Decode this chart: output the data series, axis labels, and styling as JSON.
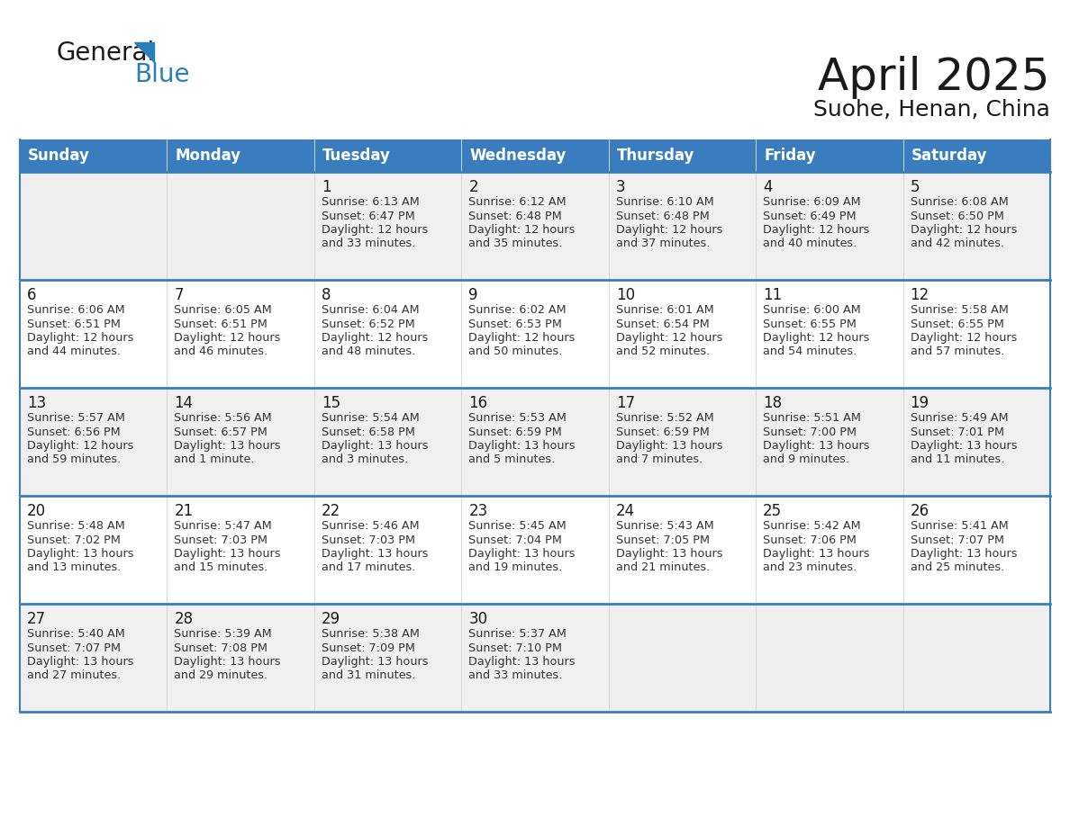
{
  "title": "April 2025",
  "subtitle": "Suohe, Henan, China",
  "header_color": "#3a7dbf",
  "header_text_color": "#FFFFFF",
  "border_color": "#3a7dbf",
  "row_border_color": "#3a7dbf",
  "cell_bg_even": "#F0F0F0",
  "cell_bg_odd": "#FFFFFF",
  "cell_bg_empty": "#EFEFEF",
  "days_of_week": [
    "Sunday",
    "Monday",
    "Tuesday",
    "Wednesday",
    "Thursday",
    "Friday",
    "Saturday"
  ],
  "logo_color1": "#1a1a1a",
  "logo_color2": "#2980b9",
  "logo_tri_color": "#2980b9",
  "title_color": "#1a1a1a",
  "subtitle_color": "#1a1a1a",
  "cell_text_color": "#333333",
  "day_num_color": "#1a1a1a",
  "calendar_data": [
    [
      {
        "day": "",
        "text": ""
      },
      {
        "day": "",
        "text": ""
      },
      {
        "day": "1",
        "text": "Sunrise: 6:13 AM\nSunset: 6:47 PM\nDaylight: 12 hours\nand 33 minutes."
      },
      {
        "day": "2",
        "text": "Sunrise: 6:12 AM\nSunset: 6:48 PM\nDaylight: 12 hours\nand 35 minutes."
      },
      {
        "day": "3",
        "text": "Sunrise: 6:10 AM\nSunset: 6:48 PM\nDaylight: 12 hours\nand 37 minutes."
      },
      {
        "day": "4",
        "text": "Sunrise: 6:09 AM\nSunset: 6:49 PM\nDaylight: 12 hours\nand 40 minutes."
      },
      {
        "day": "5",
        "text": "Sunrise: 6:08 AM\nSunset: 6:50 PM\nDaylight: 12 hours\nand 42 minutes."
      }
    ],
    [
      {
        "day": "6",
        "text": "Sunrise: 6:06 AM\nSunset: 6:51 PM\nDaylight: 12 hours\nand 44 minutes."
      },
      {
        "day": "7",
        "text": "Sunrise: 6:05 AM\nSunset: 6:51 PM\nDaylight: 12 hours\nand 46 minutes."
      },
      {
        "day": "8",
        "text": "Sunrise: 6:04 AM\nSunset: 6:52 PM\nDaylight: 12 hours\nand 48 minutes."
      },
      {
        "day": "9",
        "text": "Sunrise: 6:02 AM\nSunset: 6:53 PM\nDaylight: 12 hours\nand 50 minutes."
      },
      {
        "day": "10",
        "text": "Sunrise: 6:01 AM\nSunset: 6:54 PM\nDaylight: 12 hours\nand 52 minutes."
      },
      {
        "day": "11",
        "text": "Sunrise: 6:00 AM\nSunset: 6:55 PM\nDaylight: 12 hours\nand 54 minutes."
      },
      {
        "day": "12",
        "text": "Sunrise: 5:58 AM\nSunset: 6:55 PM\nDaylight: 12 hours\nand 57 minutes."
      }
    ],
    [
      {
        "day": "13",
        "text": "Sunrise: 5:57 AM\nSunset: 6:56 PM\nDaylight: 12 hours\nand 59 minutes."
      },
      {
        "day": "14",
        "text": "Sunrise: 5:56 AM\nSunset: 6:57 PM\nDaylight: 13 hours\nand 1 minute."
      },
      {
        "day": "15",
        "text": "Sunrise: 5:54 AM\nSunset: 6:58 PM\nDaylight: 13 hours\nand 3 minutes."
      },
      {
        "day": "16",
        "text": "Sunrise: 5:53 AM\nSunset: 6:59 PM\nDaylight: 13 hours\nand 5 minutes."
      },
      {
        "day": "17",
        "text": "Sunrise: 5:52 AM\nSunset: 6:59 PM\nDaylight: 13 hours\nand 7 minutes."
      },
      {
        "day": "18",
        "text": "Sunrise: 5:51 AM\nSunset: 7:00 PM\nDaylight: 13 hours\nand 9 minutes."
      },
      {
        "day": "19",
        "text": "Sunrise: 5:49 AM\nSunset: 7:01 PM\nDaylight: 13 hours\nand 11 minutes."
      }
    ],
    [
      {
        "day": "20",
        "text": "Sunrise: 5:48 AM\nSunset: 7:02 PM\nDaylight: 13 hours\nand 13 minutes."
      },
      {
        "day": "21",
        "text": "Sunrise: 5:47 AM\nSunset: 7:03 PM\nDaylight: 13 hours\nand 15 minutes."
      },
      {
        "day": "22",
        "text": "Sunrise: 5:46 AM\nSunset: 7:03 PM\nDaylight: 13 hours\nand 17 minutes."
      },
      {
        "day": "23",
        "text": "Sunrise: 5:45 AM\nSunset: 7:04 PM\nDaylight: 13 hours\nand 19 minutes."
      },
      {
        "day": "24",
        "text": "Sunrise: 5:43 AM\nSunset: 7:05 PM\nDaylight: 13 hours\nand 21 minutes."
      },
      {
        "day": "25",
        "text": "Sunrise: 5:42 AM\nSunset: 7:06 PM\nDaylight: 13 hours\nand 23 minutes."
      },
      {
        "day": "26",
        "text": "Sunrise: 5:41 AM\nSunset: 7:07 PM\nDaylight: 13 hours\nand 25 minutes."
      }
    ],
    [
      {
        "day": "27",
        "text": "Sunrise: 5:40 AM\nSunset: 7:07 PM\nDaylight: 13 hours\nand 27 minutes."
      },
      {
        "day": "28",
        "text": "Sunrise: 5:39 AM\nSunset: 7:08 PM\nDaylight: 13 hours\nand 29 minutes."
      },
      {
        "day": "29",
        "text": "Sunrise: 5:38 AM\nSunset: 7:09 PM\nDaylight: 13 hours\nand 31 minutes."
      },
      {
        "day": "30",
        "text": "Sunrise: 5:37 AM\nSunset: 7:10 PM\nDaylight: 13 hours\nand 33 minutes."
      },
      {
        "day": "",
        "text": ""
      },
      {
        "day": "",
        "text": ""
      },
      {
        "day": "",
        "text": ""
      }
    ]
  ],
  "fig_width": 11.88,
  "fig_height": 9.18,
  "fig_dpi": 100
}
